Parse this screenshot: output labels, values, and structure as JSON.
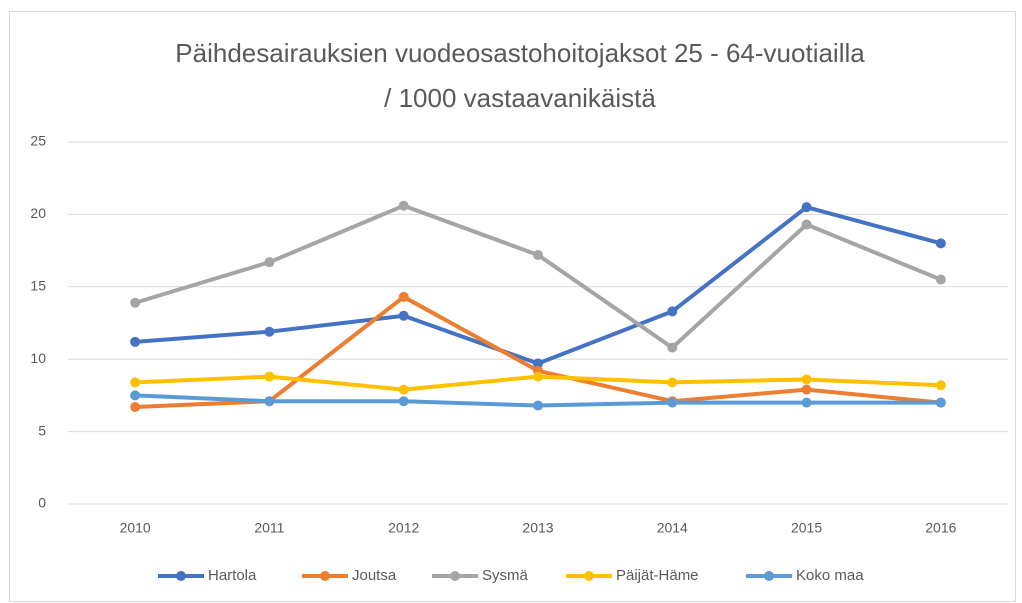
{
  "chart_data": {
    "type": "line",
    "title": [
      "Päihdesairauksien vuodeosastohoitojaksot 25 - 64-vuotiailla",
      "/ 1000 vastaavanikäistä"
    ],
    "categories": [
      "2010",
      "2011",
      "2012",
      "2013",
      "2014",
      "2015",
      "2016"
    ],
    "series": [
      {
        "name": "Hartola",
        "color": "#4472c4",
        "values": [
          11.2,
          11.9,
          13.0,
          9.7,
          13.3,
          20.5,
          18.0
        ]
      },
      {
        "name": "Joutsa",
        "color": "#ed7d31",
        "values": [
          6.7,
          7.1,
          14.3,
          9.2,
          7.1,
          7.9,
          7.0
        ]
      },
      {
        "name": "Sysmä",
        "color": "#a5a5a5",
        "values": [
          13.9,
          16.7,
          20.6,
          17.2,
          10.8,
          19.3,
          15.5
        ]
      },
      {
        "name": "Päijät-Häme",
        "color": "#ffc000",
        "values": [
          8.4,
          8.8,
          7.9,
          8.8,
          8.4,
          8.6,
          8.2
        ]
      },
      {
        "name": "Koko maa",
        "color": "#5b9bd5",
        "values": [
          7.5,
          7.1,
          7.1,
          6.8,
          7.0,
          7.0,
          7.0
        ]
      }
    ],
    "ylim": [
      0,
      25
    ],
    "yticks": [
      0,
      5,
      10,
      15,
      20,
      25
    ],
    "grid": true,
    "legend": "bottom"
  }
}
